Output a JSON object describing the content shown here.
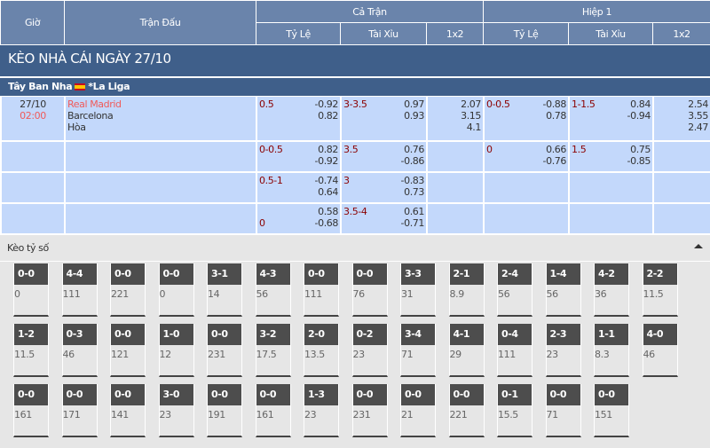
{
  "header": {
    "time": "Giờ",
    "match": "Trận Đấu",
    "full": "Cả Trận",
    "half": "Hiệp 1",
    "hdp": "Tỷ Lệ",
    "ou": "Tài Xỉu",
    "x12": "1x2"
  },
  "title": "KÈO NHÀ CÁI NGÀY 27/10",
  "league": {
    "country": "Tây Ban Nha",
    "name": "*La Liga",
    "flag": "spain-flag"
  },
  "match": {
    "date": "27/10",
    "time": "02:00",
    "home": "Real Madrid",
    "away": "Barcelona",
    "draw": "Hòa"
  },
  "rows": [
    {
      "hdp": "0.5",
      "hdp_o": [
        "-0.92",
        "0.82"
      ],
      "ou": "3-3.5",
      "ou_o": [
        "0.97",
        "0.93"
      ],
      "x12": [
        "2.07",
        "3.15",
        "4.1"
      ],
      "h_hdp": "0-0.5",
      "h_hdp_o": [
        "-0.88",
        "0.78"
      ],
      "h_ou": "1-1.5",
      "h_ou_o": [
        "0.84",
        "-0.94"
      ],
      "h_x12": [
        "2.54",
        "3.55",
        "2.47"
      ]
    },
    {
      "hdp": "0-0.5",
      "hdp_o": [
        "0.82",
        "-0.92"
      ],
      "ou": "3.5",
      "ou_o": [
        "0.76",
        "-0.86"
      ],
      "h_hdp": "0",
      "h_hdp_o": [
        "0.66",
        "-0.76"
      ],
      "h_ou": "1.5",
      "h_ou_o": [
        "0.75",
        "-0.85"
      ]
    },
    {
      "hdp": "0.5-1",
      "hdp_o": [
        "-0.74",
        "0.64"
      ],
      "ou": "3",
      "ou_o": [
        "-0.83",
        "0.73"
      ]
    },
    {
      "hdp": "0",
      "hdp_o": [
        "0.58",
        "-0.68"
      ],
      "ou": "3.5-4",
      "ou_o": [
        "0.61",
        "-0.71"
      ]
    }
  ],
  "correct_score": {
    "label": "Kèo tỷ số",
    "rows": [
      [
        [
          "0-0",
          "0"
        ],
        [
          "4-4",
          "111"
        ],
        [
          "0-0",
          "221"
        ],
        [
          "0-0",
          "0"
        ],
        [
          "3-1",
          "14"
        ],
        [
          "4-3",
          "56"
        ],
        [
          "0-0",
          "111"
        ],
        [
          "0-0",
          "76"
        ],
        [
          "3-3",
          "31"
        ],
        [
          "2-1",
          "8.9"
        ],
        [
          "2-4",
          "56"
        ],
        [
          "1-4",
          "56"
        ],
        [
          "4-2",
          "36"
        ],
        [
          "2-2",
          "11.5"
        ]
      ],
      [
        [
          "1-2",
          "11.5"
        ],
        [
          "0-3",
          "46"
        ],
        [
          "0-0",
          "121"
        ],
        [
          "1-0",
          "12"
        ],
        [
          "0-0",
          "231"
        ],
        [
          "3-2",
          "17.5"
        ],
        [
          "2-0",
          "13.5"
        ],
        [
          "0-2",
          "23"
        ],
        [
          "3-4",
          "71"
        ],
        [
          "4-1",
          "29"
        ],
        [
          "0-4",
          "111"
        ],
        [
          "2-3",
          "23"
        ],
        [
          "1-1",
          "8.3"
        ],
        [
          "4-0",
          "46"
        ]
      ],
      [
        [
          "0-0",
          "161"
        ],
        [
          "0-0",
          "171"
        ],
        [
          "0-0",
          "141"
        ],
        [
          "3-0",
          "23"
        ],
        [
          "0-0",
          "191"
        ],
        [
          "0-0",
          "161"
        ],
        [
          "1-3",
          "23"
        ],
        [
          "0-0",
          "231"
        ],
        [
          "0-0",
          "21"
        ],
        [
          "0-0",
          "221"
        ],
        [
          "0-1",
          "15.5"
        ],
        [
          "0-0",
          "71"
        ],
        [
          "0-0",
          "151"
        ]
      ]
    ]
  },
  "colors": {
    "header": "#6a84ab",
    "band": "#3f5f8a",
    "row": "#c3d8fb",
    "handicap": "#8b0000",
    "home": "#f05a5a",
    "score_tag": "#4d4d4d"
  }
}
